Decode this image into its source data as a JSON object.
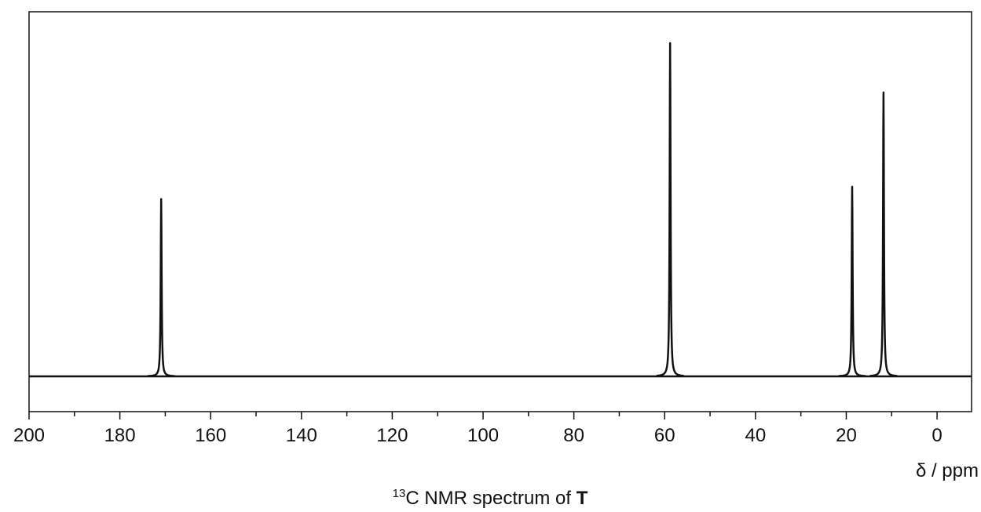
{
  "chart_data": {
    "type": "nmr-spectrum",
    "title": {
      "superscript": "13",
      "text": "C NMR spectrum of ",
      "bold": "T"
    },
    "x_label": "δ / ppm",
    "x": [
      170.9,
      58.8,
      18.7,
      11.8
    ],
    "values": [
      53.2,
      100,
      56.9,
      85.2
    ],
    "xlim": [
      200,
      -7.6
    ],
    "ylim": [
      -10.6,
      109.4
    ],
    "xticks": [
      200,
      180,
      160,
      140,
      120,
      100,
      80,
      60,
      40,
      20,
      0
    ],
    "xminor_ticks": [
      190,
      170,
      150,
      130,
      110,
      90,
      70,
      50,
      30,
      10
    ],
    "color": "#111111"
  }
}
